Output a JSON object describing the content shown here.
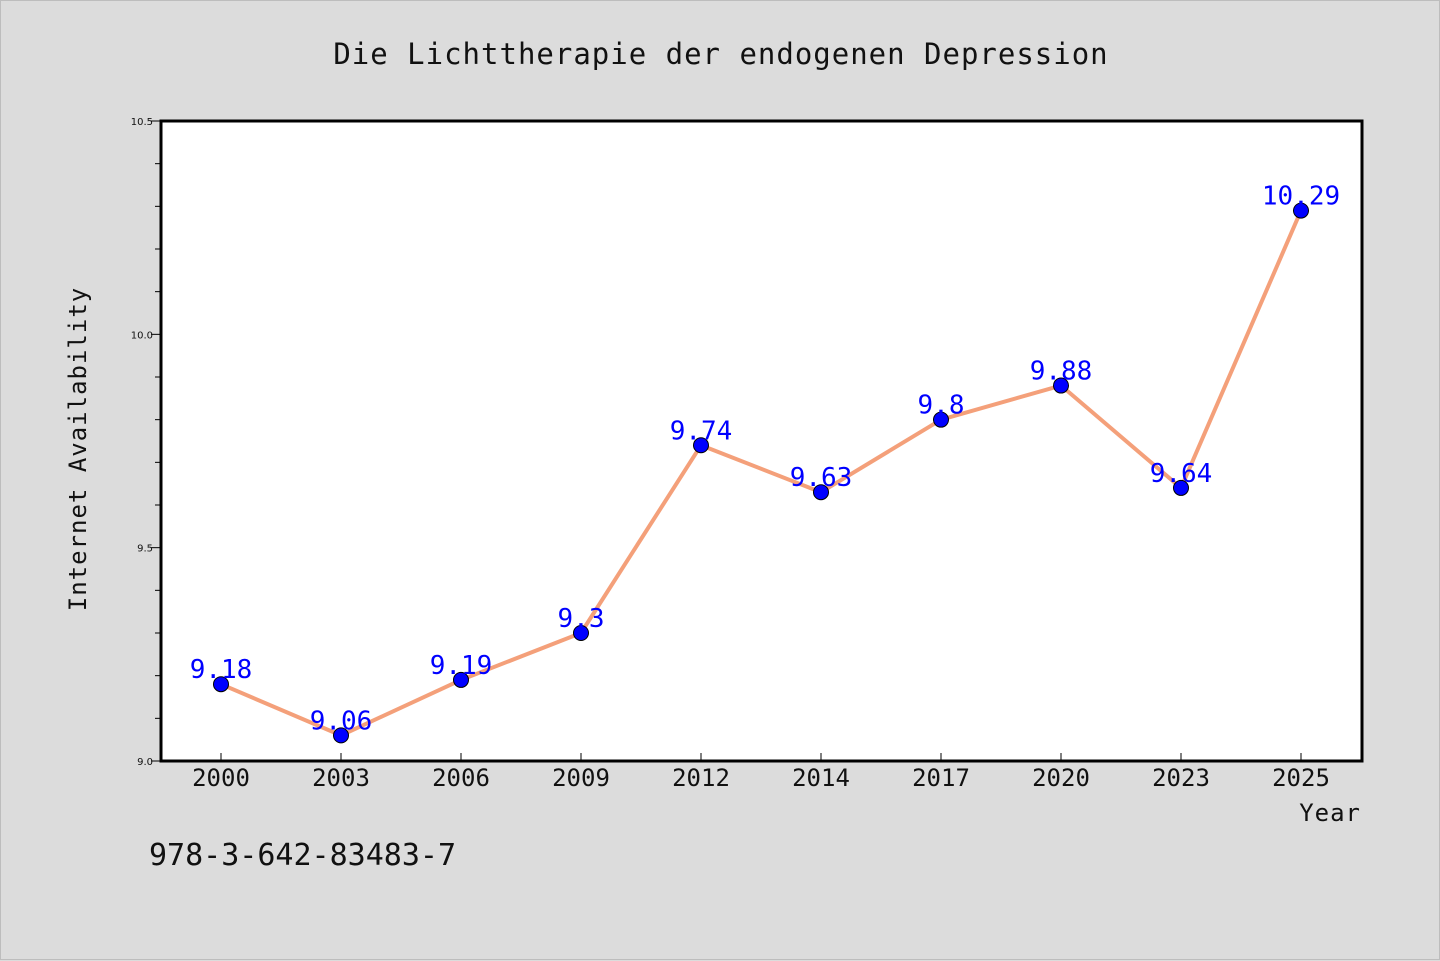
{
  "chart_data": {
    "type": "line",
    "title": "Die Lichttherapie der endogenen Depression",
    "xlabel": "Year",
    "ylabel": "Internet Availability",
    "categories": [
      "2000",
      "2003",
      "2006",
      "2009",
      "2012",
      "2014",
      "2017",
      "2020",
      "2023",
      "2025"
    ],
    "series": [
      {
        "values": [
          9.18,
          9.06,
          9.19,
          9.3,
          9.74,
          9.63,
          9.8,
          9.88,
          9.64,
          10.29
        ],
        "data_labels": [
          "9.18",
          "9.06",
          "9.19",
          "9.3",
          "9.74",
          "9.63",
          "9.8",
          "9.88",
          "9.64",
          "10.29"
        ],
        "line_color": "#f4a07a",
        "marker_color": "#0000ff"
      }
    ],
    "ylim": [
      9.0,
      10.5
    ],
    "yticks": [
      9.0,
      9.5,
      10.0,
      10.5
    ],
    "ytick_labels": [
      "9.0",
      "9.5",
      "10.0",
      "10.5"
    ],
    "grid": false,
    "legend": "none"
  },
  "footer": {
    "isbn": "978-3-642-83483-7"
  },
  "colors": {
    "background": "#dcdcdc",
    "plot_background": "#ffffff",
    "line": "#f4a07a",
    "marker": "#0000ff",
    "data_label": "#0000ff"
  }
}
